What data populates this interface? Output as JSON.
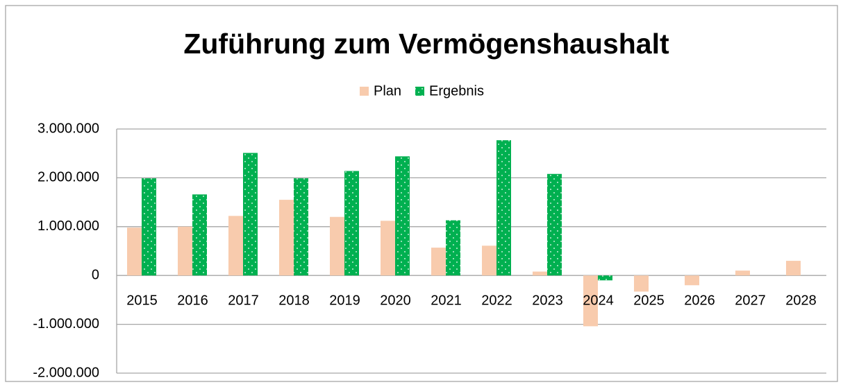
{
  "chart_data": {
    "type": "bar",
    "title": "Zuführung zum Vermögenshaushalt",
    "categories": [
      "2015",
      "2016",
      "2017",
      "2018",
      "2019",
      "2020",
      "2021",
      "2022",
      "2023",
      "2024",
      "2025",
      "2026",
      "2027",
      "2028"
    ],
    "series": [
      {
        "name": "Plan",
        "color": "#f8cbad",
        "values": [
          980000,
          1000000,
          1220000,
          1550000,
          1200000,
          1120000,
          570000,
          610000,
          80000,
          -1040000,
          -330000,
          -200000,
          100000,
          300000
        ]
      },
      {
        "name": "Ergebnis",
        "color": "#00b050",
        "values": [
          1990000,
          1660000,
          2510000,
          1990000,
          2140000,
          2440000,
          1130000,
          2770000,
          2080000,
          -100000,
          null,
          null,
          null,
          null
        ]
      }
    ],
    "ylim": [
      -2000000,
      3000000
    ],
    "yticks": [
      {
        "value": -2000000,
        "label": "-2.000.000"
      },
      {
        "value": -1000000,
        "label": "-1.000.000"
      },
      0,
      {
        "value": 1000000,
        "label": "1.000.000"
      },
      {
        "value": 2000000,
        "label": "2.000.000"
      },
      {
        "value": 3000000,
        "label": "3.000.000"
      }
    ],
    "grid": true,
    "legend": "top"
  }
}
